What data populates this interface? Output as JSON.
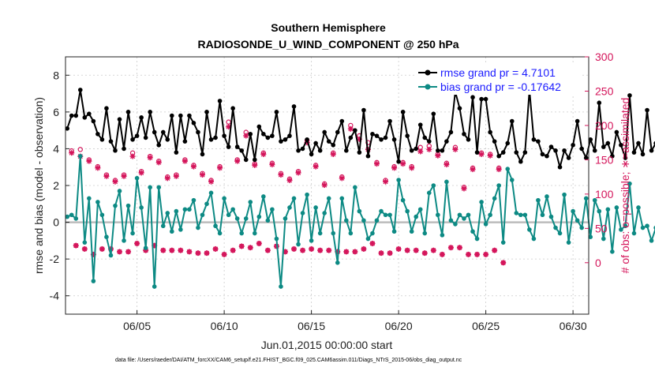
{
  "chart_data": {
    "type": "line",
    "title": "Southern Hemisphere",
    "subtitle": "RADIOSONDE_U_WIND_COMPONENT @ 250 hPa",
    "xlabel": "Jun.01,2015 00:00:00 start",
    "ylabel": "rmse and bias (model - observation)",
    "y2label": "# of obs: o=possible; ∗=assimilated",
    "xlim": [
      0.9,
      30.9
    ],
    "ylim": [
      -5,
      9
    ],
    "y2lim": [
      -75,
      300
    ],
    "x_ticks": [
      {
        "label": "06/05",
        "x": 5
      },
      {
        "label": "06/10",
        "x": 10
      },
      {
        "label": "06/15",
        "x": 15
      },
      {
        "label": "06/20",
        "x": 20
      },
      {
        "label": "06/25",
        "x": 25
      },
      {
        "label": "06/30",
        "x": 30
      }
    ],
    "y_ticks": [
      -4,
      -2,
      0,
      2,
      4,
      6,
      8
    ],
    "y2_ticks": [
      0,
      50,
      100,
      150,
      200,
      250,
      300
    ],
    "grid": true,
    "legend_position": "top-right",
    "x_step": 0.25,
    "x_start": 1.0,
    "series": [
      {
        "name": "rmse grand pr = 4.7101",
        "color": "#000000",
        "axis": "left",
        "values": [
          5.1,
          5.8,
          5.8,
          7.2,
          5.7,
          5.9,
          5.5,
          4.8,
          4.5,
          6.2,
          4.4,
          3.9,
          5.6,
          4.0,
          6.0,
          4.5,
          4.7,
          5.7,
          4.6,
          6.0,
          4.9,
          4.2,
          4.9,
          4.5,
          5.8,
          3.8,
          5.8,
          4.4,
          5.8,
          5.4,
          4.9,
          3.7,
          6.0,
          4.5,
          4.6,
          6.6,
          4.7,
          4.1,
          6.2,
          4.1,
          3.9,
          3.4,
          4.8,
          3.4,
          5.2,
          4.8,
          4.6,
          4.7,
          6.0,
          4.4,
          4.5,
          4.7,
          6.3,
          3.9,
          4.0,
          4.5,
          3.7,
          4.3,
          3.9,
          4.9,
          4.4,
          4.2,
          4.9,
          5.5,
          3.9,
          4.6,
          5.0,
          3.8,
          6.1,
          3.6,
          4.8,
          4.7,
          4.5,
          4.6,
          5.5,
          4.5,
          3.3,
          6.0,
          4.7,
          3.9,
          4.0,
          5.3,
          4.6,
          4.4,
          5.9,
          3.9,
          3.9,
          4.4,
          4.9,
          7.1,
          6.2,
          4.8,
          4.5,
          6.8,
          3.8,
          6.7,
          6.7,
          4.9,
          4.4,
          3.6,
          3.8,
          4.3,
          5.5,
          3.8,
          3.3,
          3.8,
          7.2,
          4.5,
          4.4,
          3.7,
          3.6,
          4.1,
          3.9,
          3.0,
          3.9,
          3.5,
          4.2,
          5.5,
          4.0,
          3.5,
          4.5,
          3.9,
          6.5,
          4.1,
          4.3,
          3.6,
          4.9,
          4.2,
          3.5,
          6.9,
          3.8,
          4.3,
          3.7,
          6.1,
          3.9,
          4.3,
          4.7,
          4.3,
          4.3,
          4.7,
          5.3,
          5.7,
          5.1,
          4.1,
          4.5,
          4.7,
          4.1,
          4.6,
          5.5,
          5.0,
          4.2,
          4.7,
          4.2,
          4.1,
          4.3,
          5.8,
          3.4,
          4.0,
          3.9,
          4.5,
          3.2,
          5.1,
          3.5,
          3.7,
          4.8,
          4.4,
          4.3,
          4.0,
          4.1,
          3.8,
          3.2,
          4.3,
          4.0,
          3.0,
          4.4,
          3.9,
          3.8,
          3.8,
          4.5,
          4.0,
          4.1,
          4.3,
          4.3,
          4.2,
          4.4,
          4.5,
          5.0,
          4.8,
          3.2,
          4.1,
          5.0,
          4.7,
          4.1,
          4.2,
          5.1,
          4.6,
          4.3,
          5.1,
          5.5,
          3.2,
          4.6,
          4.6,
          3.2,
          4.3,
          5.8,
          4.8,
          4.3,
          4.9,
          3.9,
          4.2,
          4.5,
          5.1,
          3.8,
          4.0,
          3.4,
          3.3,
          4.1,
          4.3,
          4.3,
          4.2,
          4.4,
          4.6,
          5.1,
          4.5
        ]
      },
      {
        "name": "bias grand pr = -0.17642",
        "color": "#0d8a84",
        "axis": "left",
        "values": [
          0.3,
          0.4,
          0.2,
          3.6,
          -1.1,
          1.3,
          -3.2,
          1.1,
          0.4,
          -0.8,
          -1.8,
          0.9,
          1.7,
          -1.0,
          0.9,
          -0.6,
          2.4,
          0.8,
          -1.4,
          1.9,
          -3.5,
          1.9,
          -0.2,
          0.5,
          -0.5,
          0.6,
          -0.4,
          0.7,
          0.7,
          1.2,
          -0.3,
          0.4,
          1.0,
          1.6,
          -0.2,
          -0.6,
          1.3,
          0.4,
          0.7,
          0.2,
          -0.6,
          0.2,
          1.1,
          -0.6,
          0.3,
          1.4,
          0.1,
          0.7,
          -0.9,
          -3.5,
          0.2,
          0.8,
          1.3,
          -1.2,
          0.5,
          1.5,
          -1.0,
          0.8,
          -0.6,
          0.5,
          1.3,
          -0.6,
          -2.2,
          1.3,
          0.1,
          -0.6,
          1.9,
          0.6,
          0.1,
          -0.9,
          -0.6,
          0.1,
          0.6,
          0.4,
          0.4,
          -0.5,
          2.3,
          1.2,
          0.6,
          -0.5,
          0.3,
          0.7,
          -0.6,
          1.6,
          2.0,
          0.4,
          -0.7,
          2.2,
          0.1,
          -0.1,
          0.4,
          0.2,
          0.4,
          -0.5,
          -0.9,
          1.1,
          -0.1,
          0.4,
          1.3,
          2.0,
          -1.1,
          2.9,
          2.3,
          0.5,
          0.4,
          0.4,
          -0.4,
          -0.9,
          1.2,
          0.4,
          1.4,
          0.3,
          -0.3,
          -0.6,
          1.5,
          -1.1,
          0.6,
          0.1,
          -0.3,
          1.3,
          -0.8,
          1.2,
          0.6,
          -0.9,
          0.7,
          -1.6,
          0.8,
          -0.4,
          -0.2,
          2.1,
          -0.6,
          0.8,
          -0.3,
          -0.2,
          -1.0,
          -0.3,
          0.3,
          0.6,
          -0.5,
          1.1,
          0.9,
          0.7,
          -2.3,
          1.4,
          -0.6,
          1.0,
          -0.2,
          0.9,
          1.3,
          1.4,
          0.5,
          -0.6,
          -1.4,
          1.9,
          0.6,
          -0.6,
          1.6,
          0.1,
          -1.7,
          1.1,
          2.1,
          1.7,
          0.7,
          -1.8,
          -0.4,
          -0.3,
          -1.3,
          0.9,
          0.3,
          0.8,
          1.6,
          2.3,
          0.6,
          -4.8,
          -0.8,
          -1.2,
          1.2,
          0.2,
          0.6,
          -0.8,
          -1.1,
          -1.6,
          1.1,
          0.6,
          -0.4,
          0.3,
          -0.4,
          -0.6,
          -0.1,
          0.2,
          -2.5,
          1.0,
          1.1,
          0.4,
          -0.2,
          0.8,
          -1.6,
          -0.4,
          -0.3,
          -0.1,
          1.3,
          -0.9,
          0.4,
          -1.2,
          -0.5,
          -0.4,
          0.9,
          -0.4,
          0.7,
          -0.2,
          -0.6,
          1.6,
          0.9,
          1.4,
          1.1,
          0.8,
          -0.3,
          -0.9,
          -0.9,
          1.3,
          0.3,
          0.4,
          -0.3,
          -0.6,
          1.8,
          0.6,
          0.2,
          -0.3,
          0.6,
          -0.6,
          -0.1,
          0.6,
          -0.6,
          1.8,
          -0.7,
          0.3,
          1.0,
          0.5,
          -1.1,
          0.0,
          1.0
        ]
      }
    ],
    "obs_counts": {
      "color": "#d4145a",
      "axis": "right",
      "hours": [
        0,
        12
      ],
      "possible": [
        [
          163,
          25
        ],
        [
          165,
          20
        ],
        [
          150,
          12
        ],
        [
          140,
          20
        ],
        [
          128,
          20
        ],
        [
          120,
          16
        ],
        [
          128,
          16
        ],
        [
          160,
          28
        ],
        [
          133,
          18
        ],
        [
          155,
          25
        ],
        [
          148,
          18
        ],
        [
          125,
          18
        ],
        [
          128,
          18
        ],
        [
          150,
          16
        ],
        [
          142,
          14
        ],
        [
          130,
          14
        ],
        [
          120,
          20
        ],
        [
          140,
          12
        ],
        [
          205,
          18
        ],
        [
          150,
          24
        ],
        [
          190,
          22
        ],
        [
          144,
          28
        ],
        [
          160,
          18
        ],
        [
          145,
          24
        ],
        [
          130,
          16
        ],
        [
          122,
          20
        ],
        [
          133,
          18
        ],
        [
          178,
          20
        ],
        [
          142,
          18
        ],
        [
          115,
          18
        ],
        [
          160,
          16
        ],
        [
          125,
          16
        ],
        [
          200,
          16
        ],
        [
          185,
          20
        ],
        [
          175,
          28
        ],
        [
          146,
          14
        ],
        [
          120,
          14
        ],
        [
          140,
          20
        ],
        [
          146,
          18
        ],
        [
          140,
          18
        ],
        [
          168,
          14
        ],
        [
          170,
          18
        ],
        [
          158,
          12
        ],
        [
          145,
          22
        ],
        [
          168,
          22
        ],
        [
          110,
          12
        ],
        [
          138,
          12
        ],
        [
          160,
          12
        ],
        [
          158,
          18
        ],
        [
          138,
          0
        ]
      ],
      "assimilated": [
        [
          160,
          25
        ],
        [
          155,
          20
        ],
        [
          148,
          12
        ],
        [
          138,
          20
        ],
        [
          126,
          20
        ],
        [
          118,
          16
        ],
        [
          126,
          16
        ],
        [
          155,
          28
        ],
        [
          131,
          18
        ],
        [
          153,
          25
        ],
        [
          146,
          18
        ],
        [
          123,
          18
        ],
        [
          126,
          18
        ],
        [
          148,
          16
        ],
        [
          140,
          14
        ],
        [
          128,
          14
        ],
        [
          118,
          20
        ],
        [
          138,
          12
        ],
        [
          198,
          18
        ],
        [
          148,
          24
        ],
        [
          185,
          22
        ],
        [
          142,
          28
        ],
        [
          158,
          18
        ],
        [
          143,
          24
        ],
        [
          128,
          16
        ],
        [
          120,
          20
        ],
        [
          131,
          18
        ],
        [
          175,
          20
        ],
        [
          140,
          18
        ],
        [
          113,
          18
        ],
        [
          158,
          16
        ],
        [
          123,
          16
        ],
        [
          195,
          16
        ],
        [
          180,
          20
        ],
        [
          165,
          28
        ],
        [
          144,
          14
        ],
        [
          118,
          14
        ],
        [
          138,
          20
        ],
        [
          144,
          18
        ],
        [
          138,
          18
        ],
        [
          162,
          14
        ],
        [
          165,
          18
        ],
        [
          156,
          12
        ],
        [
          143,
          22
        ],
        [
          165,
          22
        ],
        [
          108,
          12
        ],
        [
          136,
          12
        ],
        [
          158,
          12
        ],
        [
          156,
          18
        ],
        [
          136,
          0
        ]
      ]
    }
  },
  "footer": {
    "text": "data file: /Users/raeder/DAI/ATM_forcXX/CAM6_setup/f.e21.FHIST_BGC.f09_025.CAM6assim.011/Diags_NTrS_2015-06/obs_diag_output.nc"
  }
}
